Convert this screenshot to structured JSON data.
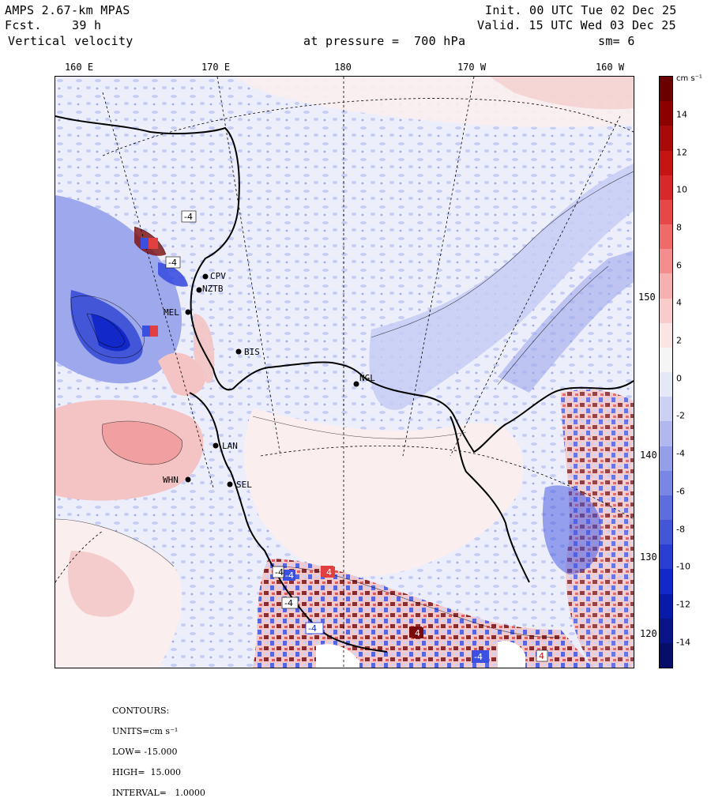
{
  "header": {
    "model": "AMPS 2.67-km MPAS",
    "forecast_label": "Fcst.",
    "forecast_value": "39 h",
    "field": "Vertical velocity",
    "init": "Init. 00 UTC Tue 02 Dec 25",
    "valid": "Valid. 15 UTC Wed 03 Dec 25",
    "level": "at pressure =  700 hPa",
    "smoothing": "sm= 6"
  },
  "map": {
    "longitude_labels": [
      "160 E",
      "170 E",
      "180",
      "170 W",
      "160 W"
    ],
    "latitude_labels": [
      "150 W",
      "140 W",
      "130 W",
      "120 W"
    ],
    "stations": [
      "CPV",
      "NZTB",
      "MEL",
      "BIS",
      "NGL",
      "LAN",
      "WHN",
      "SEL"
    ],
    "contour_labels": [
      "-4",
      "-4",
      "-4",
      "4",
      "-4",
      "-4",
      "-4",
      "4",
      "4",
      "-4",
      "4",
      "4"
    ],
    "colors": {
      "neg_strong": "#0a0a8c",
      "neg_mid": "#3b4fe0",
      "neg_light": "#c6cdf4",
      "neutral_neg": "#eceefb",
      "neutral_pos": "#fbeeee",
      "pos_light": "#f4c3c3",
      "pos_mid": "#e04040",
      "pos_strong": "#7a0a0a"
    }
  },
  "colorbar": {
    "units": "cm s⁻¹",
    "ticks": [
      "14",
      "12",
      "10",
      "8",
      "6",
      "4",
      "2",
      "0",
      "-2",
      "-4",
      "-6",
      "-8",
      "-10",
      "-12",
      "-14"
    ],
    "colors": [
      "#6b0000",
      "#8c0000",
      "#a80a0a",
      "#c41414",
      "#d62a2a",
      "#e64848",
      "#f06a6a",
      "#f48e8e",
      "#f7b0b0",
      "#f9cccc",
      "#fbe4e4",
      "#f5f5f5",
      "#e6e8f8",
      "#ccd1f4",
      "#b0b8ef",
      "#949fe9",
      "#7986e3",
      "#5e6ddd",
      "#4356d8",
      "#2a3fd2",
      "#1228c8",
      "#0a1aa8",
      "#081488",
      "#060e6a"
    ]
  },
  "footer": {
    "contours_label": "CONTOURS:",
    "units_label": "UNITS=cm s⁻¹",
    "low": "LOW= -15.000",
    "high": "HIGH=  15.000",
    "interval": "INTERVAL=   1.0000"
  }
}
